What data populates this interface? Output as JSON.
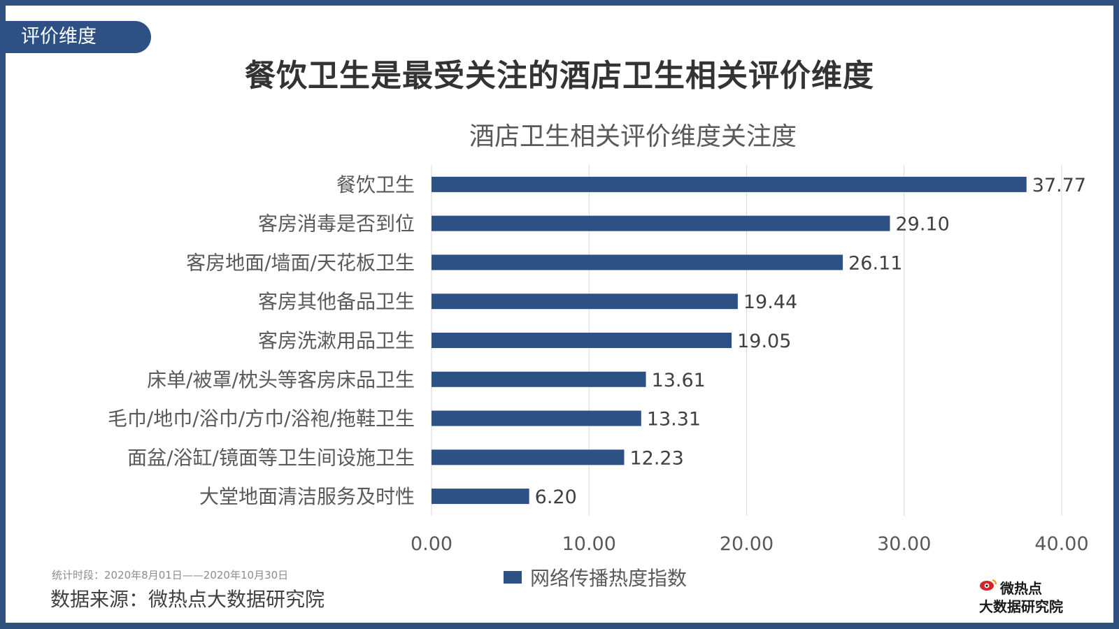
{
  "tag_label": "评价维度",
  "main_title": "餐饮卫生是最受关注的酒店卫生相关评价维度",
  "chart_data": {
    "type": "bar",
    "orientation": "horizontal",
    "title": "酒店卫生相关评价维度关注度",
    "categories": [
      "餐饮卫生",
      "客房消毒是否到位",
      "客房地面/墙面/天花板卫生",
      "客房其他备品卫生",
      "客房洗漱用品卫生",
      "床单/被罩/枕头等客房床品卫生",
      "毛巾/地巾/浴巾/方巾/浴袍/拖鞋卫生",
      "面盆/浴缸/镜面等卫生间设施卫生",
      "大堂地面清洁服务及时性"
    ],
    "series": [
      {
        "name": "网络传播热度指数",
        "values": [
          37.77,
          29.1,
          26.11,
          19.44,
          19.05,
          13.61,
          13.31,
          12.23,
          6.2
        ]
      }
    ],
    "data_labels": [
      "37.77",
      "29.10",
      "26.11",
      "19.44",
      "19.05",
      "13.61",
      "13.31",
      "12.23",
      "6.20"
    ],
    "xlim": [
      0,
      40
    ],
    "x_ticks": [
      "0.00",
      "10.00",
      "20.00",
      "30.00",
      "40.00"
    ],
    "grid": true,
    "legend_position": "bottom",
    "bar_color": "#2d5185"
  },
  "footer": {
    "period": "统计时段：2020年8月01日——2020年10月30日",
    "source": "数据来源：微热点大数据研究院",
    "logo_line1": "微热点",
    "logo_line2": "大数据研究院"
  }
}
